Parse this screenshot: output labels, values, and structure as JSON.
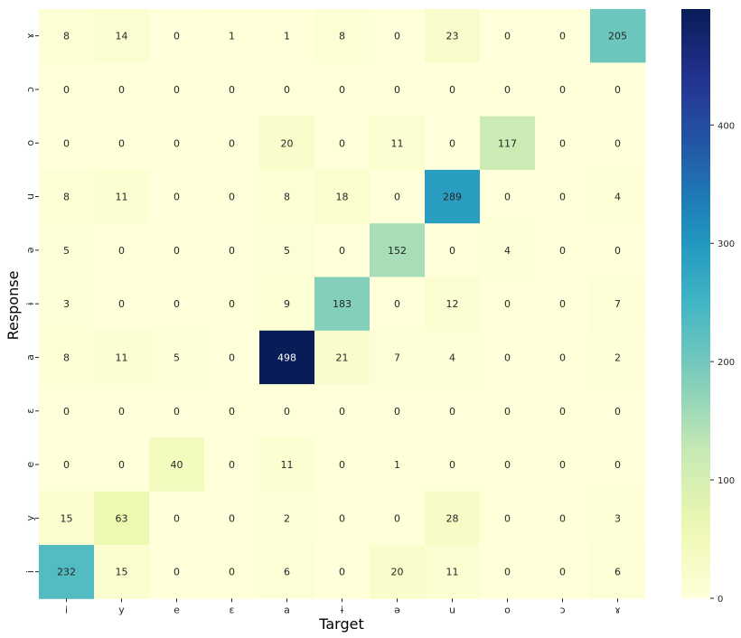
{
  "chart_data": {
    "type": "heatmap",
    "title": "",
    "xlabel": "Target",
    "ylabel": "Response",
    "x_categories": [
      "i",
      "y",
      "e",
      "ɛ",
      "a",
      "ɨ",
      "ə",
      "u",
      "o",
      "ɔ",
      "ɤ"
    ],
    "y_categories": [
      "ɤ",
      "ɔ",
      "o",
      "u",
      "ə",
      "ɨ",
      "a",
      "ɛ",
      "e",
      "y",
      "i"
    ],
    "values": [
      [
        8,
        14,
        0,
        1,
        1,
        8,
        0,
        23,
        0,
        0,
        205
      ],
      [
        0,
        0,
        0,
        0,
        0,
        0,
        0,
        0,
        0,
        0,
        0
      ],
      [
        0,
        0,
        0,
        0,
        20,
        0,
        11,
        0,
        117,
        0,
        0
      ],
      [
        8,
        11,
        0,
        0,
        8,
        18,
        0,
        289,
        0,
        0,
        4
      ],
      [
        5,
        0,
        0,
        0,
        5,
        0,
        152,
        0,
        4,
        0,
        0
      ],
      [
        3,
        0,
        0,
        0,
        9,
        183,
        0,
        12,
        0,
        0,
        7
      ],
      [
        8,
        11,
        5,
        0,
        498,
        21,
        7,
        4,
        0,
        0,
        2
      ],
      [
        0,
        0,
        0,
        0,
        0,
        0,
        0,
        0,
        0,
        0,
        0
      ],
      [
        0,
        0,
        40,
        0,
        11,
        0,
        1,
        0,
        0,
        0,
        0
      ],
      [
        15,
        63,
        0,
        0,
        2,
        0,
        0,
        28,
        0,
        0,
        3
      ],
      [
        232,
        15,
        0,
        0,
        6,
        0,
        20,
        11,
        0,
        0,
        6
      ]
    ],
    "colorscale": "YlGnBu",
    "colorbar_range": [
      0,
      498
    ],
    "colorbar_ticks": [
      0,
      100,
      200,
      300,
      400
    ],
    "annotated": true,
    "grid": false
  }
}
